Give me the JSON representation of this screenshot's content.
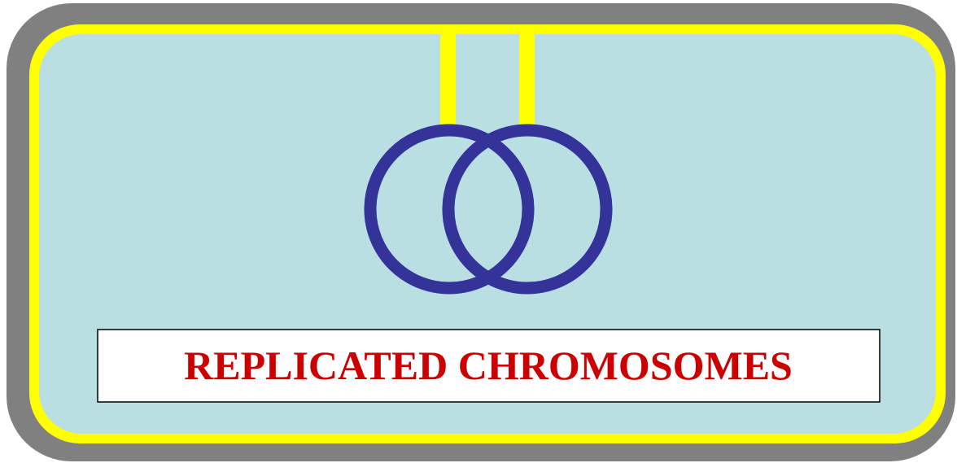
{
  "label": "REPLICATED CHROMOSOMES"
}
